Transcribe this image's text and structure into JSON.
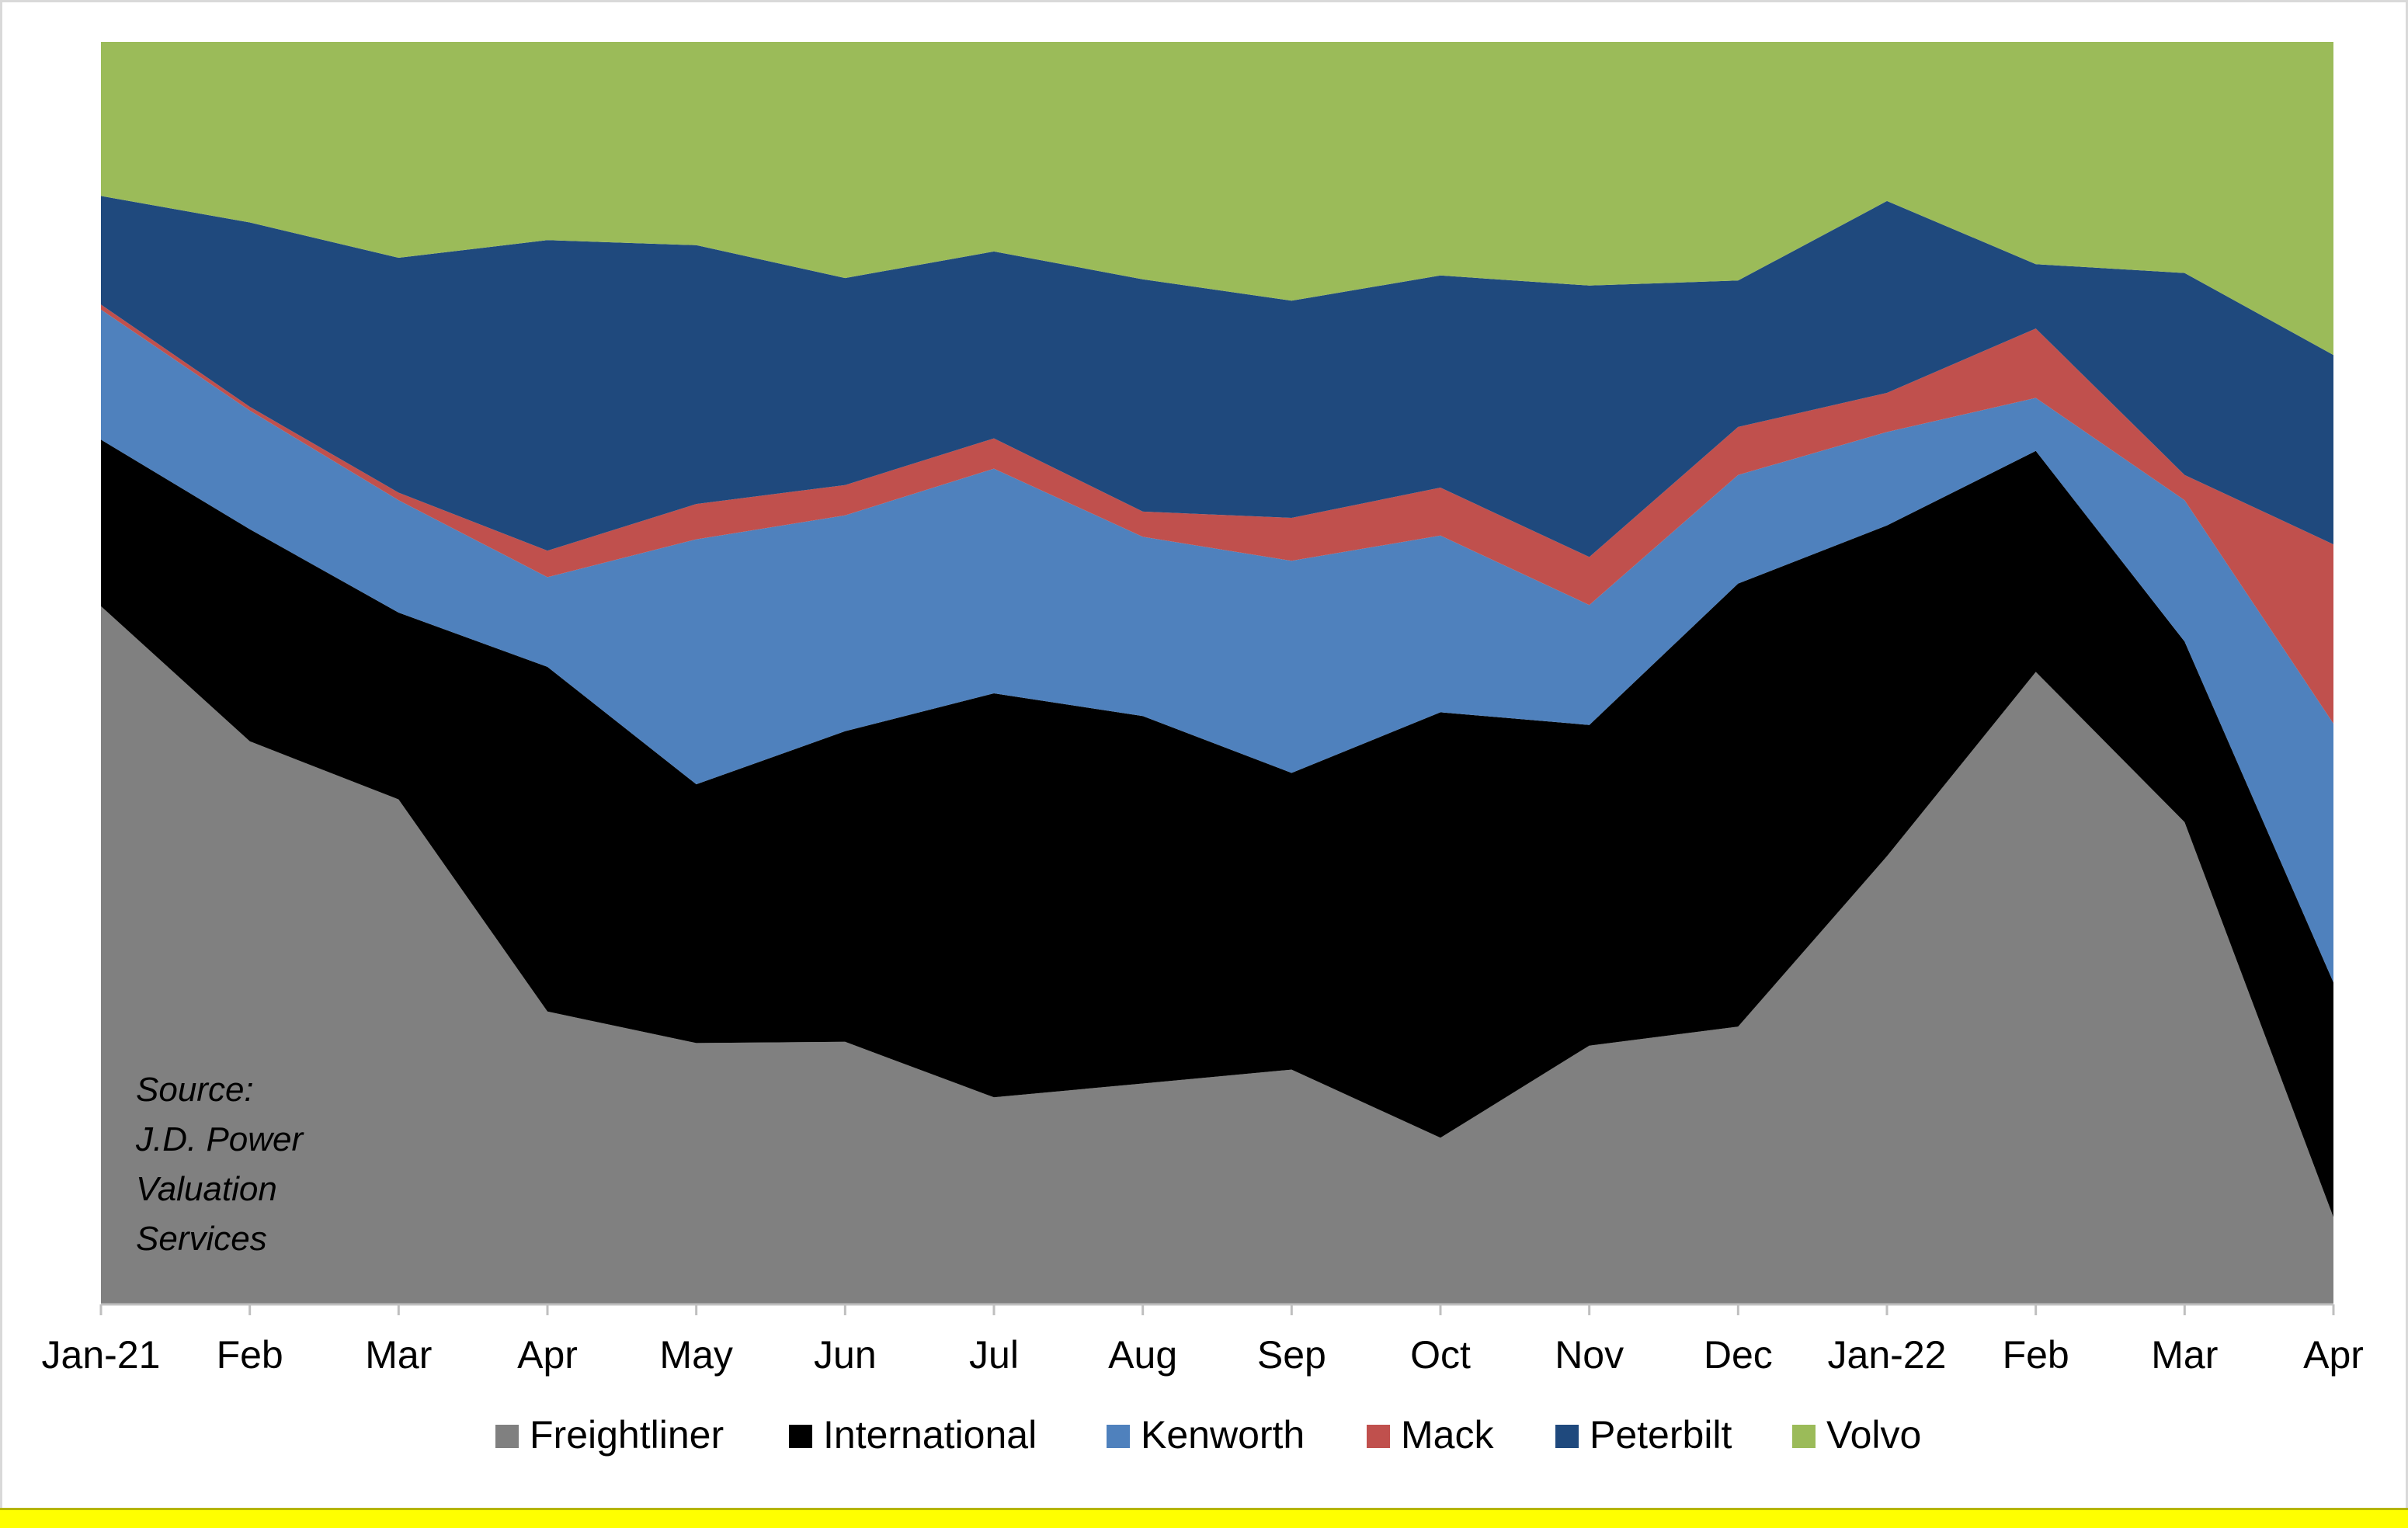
{
  "chart_data": {
    "type": "area",
    "stacked": true,
    "normalized_to": 100,
    "categories": [
      "Jan-21",
      "Feb",
      "Mar",
      "Apr",
      "May",
      "Jun",
      "Jul",
      "Aug",
      "Sep",
      "Oct",
      "Nov",
      "Dec",
      "Jan-22",
      "Feb",
      "Mar",
      "Apr"
    ],
    "series": [
      {
        "name": "Freightliner",
        "color": "#808080",
        "values": [
          55.3,
          44.6,
          40.0,
          23.2,
          20.7,
          20.8,
          16.4,
          17.5,
          18.6,
          13.2,
          20.5,
          22.0,
          35.5,
          50.1,
          38.2,
          6.9
        ]
      },
      {
        "name": "International",
        "color": "#000000",
        "values": [
          13.2,
          16.8,
          14.8,
          27.3,
          20.5,
          24.6,
          32.0,
          29.1,
          23.5,
          33.7,
          25.4,
          35.1,
          26.2,
          17.5,
          14.3,
          18.6
        ]
      },
      {
        "name": "Kenworth",
        "color": "#4f81bd",
        "values": [
          10.3,
          9.4,
          8.9,
          7.1,
          19.4,
          17.1,
          17.8,
          14.2,
          16.8,
          14.0,
          9.5,
          8.6,
          7.4,
          4.2,
          11.2,
          20.5
        ]
      },
      {
        "name": "Mack",
        "color": "#c0504d",
        "values": [
          0.4,
          0.3,
          0.6,
          2.1,
          2.8,
          2.4,
          2.4,
          2.0,
          3.4,
          3.8,
          3.8,
          3.8,
          3.1,
          5.5,
          2.0,
          14.2
        ]
      },
      {
        "name": "Peterbilt",
        "color": "#1f497d",
        "values": [
          8.6,
          14.6,
          18.6,
          24.6,
          20.5,
          16.4,
          14.8,
          18.4,
          17.2,
          16.8,
          21.5,
          11.6,
          15.2,
          5.1,
          16.0,
          15.0
        ]
      },
      {
        "name": "Volvo",
        "color": "#9bbb59",
        "values": [
          12.2,
          14.3,
          17.1,
          15.7,
          16.1,
          18.7,
          16.6,
          18.8,
          20.5,
          18.5,
          19.3,
          18.9,
          12.6,
          17.6,
          18.3,
          24.8
        ]
      }
    ],
    "ylim": [
      0,
      100
    ],
    "grid": false,
    "legend": "bottom",
    "annotation": [
      "Source:",
      "J.D. Power",
      "Valuation",
      "Services"
    ]
  }
}
